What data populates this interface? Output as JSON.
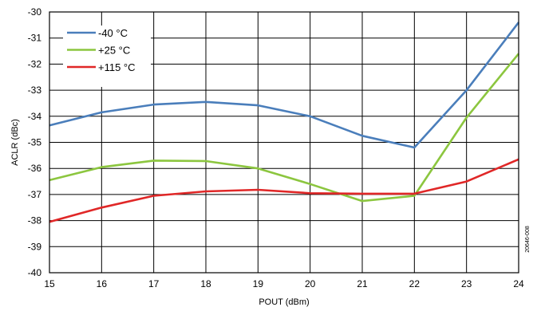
{
  "chart_data": {
    "type": "line",
    "xlabel": "POUT (dBm)",
    "ylabel": "ACLR (dBc)",
    "x": [
      15,
      16,
      17,
      18,
      19,
      20,
      21,
      22,
      23,
      24
    ],
    "xlim": [
      15,
      24
    ],
    "ylim": [
      -40,
      -30
    ],
    "xticks": [
      "15",
      "16",
      "17",
      "18",
      "19",
      "20",
      "21",
      "22",
      "23",
      "24"
    ],
    "yticks": [
      "-30",
      "-31",
      "-32",
      "-33",
      "-34",
      "-35",
      "-36",
      "-37",
      "-38",
      "-39",
      "-40"
    ],
    "grid": true,
    "legend_position": "top-left",
    "series": [
      {
        "name": "-40 °C",
        "color": "#4a7ebb",
        "values": [
          -34.35,
          -33.85,
          -33.55,
          -33.45,
          -33.58,
          -34.0,
          -34.75,
          -35.2,
          -33.0,
          -30.4
        ]
      },
      {
        "name": "+25 °C",
        "color": "#8cc63f",
        "values": [
          -36.45,
          -35.95,
          -35.7,
          -35.72,
          -36.0,
          -36.6,
          -37.25,
          -37.05,
          -34.05,
          -31.6
        ]
      },
      {
        "name": "+115 °C",
        "color": "#e02727",
        "values": [
          -38.05,
          -37.5,
          -37.05,
          -36.88,
          -36.82,
          -36.95,
          -36.97,
          -36.97,
          -36.5,
          -35.65
        ]
      }
    ],
    "side_label": "20646-008"
  }
}
